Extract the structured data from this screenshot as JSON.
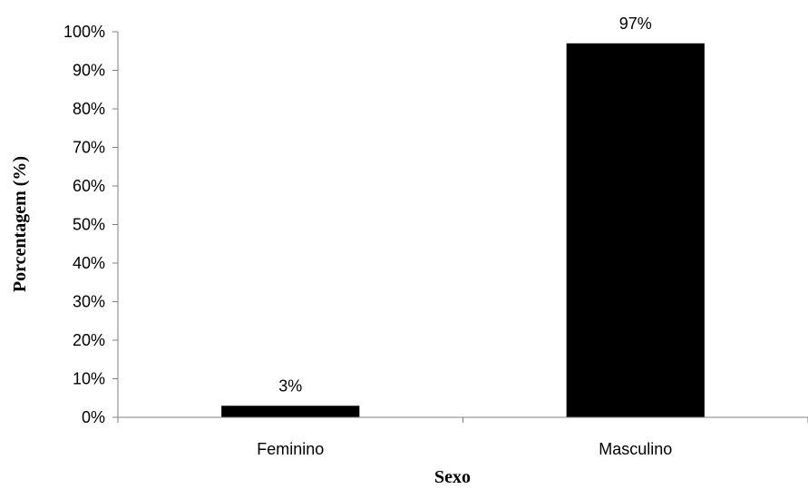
{
  "chart_data": {
    "type": "bar",
    "categories": [
      "Feminino",
      "Masculino"
    ],
    "values": [
      3,
      97
    ],
    "data_labels": [
      "3%",
      "97%"
    ],
    "xlabel": "Sexo",
    "ylabel": "Porcentagem (%)",
    "ylim": [
      0,
      100
    ],
    "yticks": [
      0,
      10,
      20,
      30,
      40,
      50,
      60,
      70,
      80,
      90,
      100
    ],
    "ytick_labels": [
      "0%",
      "10%",
      "20%",
      "30%",
      "40%",
      "50%",
      "60%",
      "70%",
      "80%",
      "90%",
      "100%"
    ],
    "grid": false,
    "legend": "none",
    "bar_color": "#000000",
    "axis_color": "#808080"
  }
}
